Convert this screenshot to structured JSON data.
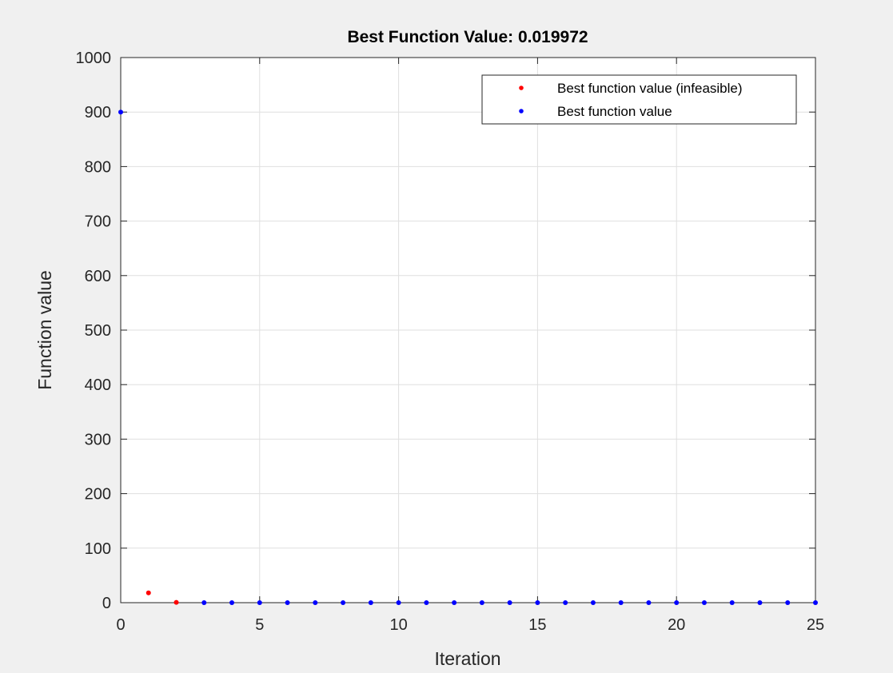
{
  "chart_data": {
    "type": "scatter",
    "title": "Best Function Value: 0.019972",
    "xlabel": "Iteration",
    "ylabel": "Function value",
    "xlim": [
      0,
      25
    ],
    "ylim": [
      0,
      1000
    ],
    "x_ticks": [
      0,
      5,
      10,
      15,
      20,
      25
    ],
    "y_ticks": [
      0,
      100,
      200,
      300,
      400,
      500,
      600,
      700,
      800,
      900,
      1000
    ],
    "grid": true,
    "legend_position": "top-right",
    "series": [
      {
        "name": "Best function value (infeasible)",
        "color": "#ff0000",
        "points": [
          [
            1,
            18
          ],
          [
            2,
            0.5
          ]
        ]
      },
      {
        "name": "Best function value",
        "color": "#0000ff",
        "points": [
          [
            0,
            900
          ],
          [
            3,
            0.02
          ],
          [
            4,
            0.02
          ],
          [
            5,
            0.02
          ],
          [
            6,
            0.02
          ],
          [
            7,
            0.02
          ],
          [
            8,
            0.02
          ],
          [
            9,
            0.02
          ],
          [
            10,
            0.02
          ],
          [
            11,
            0.02
          ],
          [
            12,
            0.02
          ],
          [
            13,
            0.02
          ],
          [
            14,
            0.02
          ],
          [
            15,
            0.02
          ],
          [
            16,
            0.02
          ],
          [
            17,
            0.02
          ],
          [
            18,
            0.02
          ],
          [
            19,
            0.02
          ],
          [
            20,
            0.02
          ],
          [
            21,
            0.02
          ],
          [
            22,
            0.02
          ],
          [
            23,
            0.02
          ],
          [
            24,
            0.02
          ],
          [
            25,
            0.019972
          ]
        ]
      }
    ]
  }
}
